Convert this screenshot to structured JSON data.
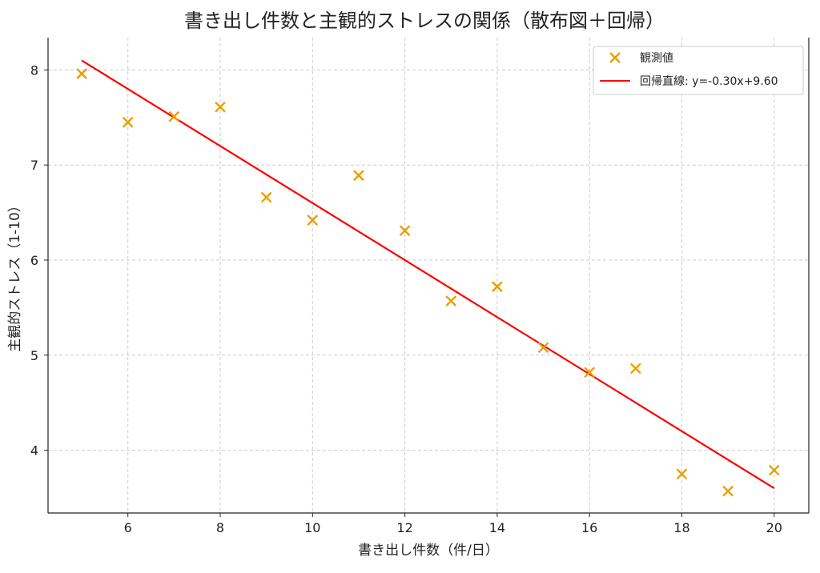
{
  "chart_data": {
    "type": "scatter",
    "title": "書き出し件数と主観的ストレスの関係（散布図＋回帰）",
    "xlabel": "書き出し件数（件/日）",
    "ylabel": "主観的ストレス（1-10）",
    "xlim": [
      4.27,
      20.75
    ],
    "ylim": [
      3.34,
      8.34
    ],
    "xticks": [
      6,
      8,
      10,
      12,
      14,
      16,
      18,
      20
    ],
    "yticks": [
      4,
      5,
      6,
      7,
      8
    ],
    "grid": true,
    "legend_position": "top-right",
    "series": [
      {
        "name": "観測値",
        "type": "scatter",
        "marker": "x",
        "color": "#E8A000",
        "x": [
          5,
          6,
          7,
          8,
          9,
          10,
          11,
          12,
          13,
          14,
          15,
          16,
          17,
          18,
          19,
          20
        ],
        "y": [
          7.96,
          7.45,
          7.51,
          7.61,
          6.66,
          6.42,
          6.89,
          6.31,
          5.57,
          5.72,
          5.08,
          4.82,
          4.86,
          3.75,
          3.57,
          3.79
        ]
      },
      {
        "name": "回帰直線: y=-0.30x+9.60",
        "type": "line",
        "color": "#FF0000",
        "slope": -0.3,
        "intercept": 9.6,
        "x": [
          5,
          20
        ]
      }
    ]
  }
}
